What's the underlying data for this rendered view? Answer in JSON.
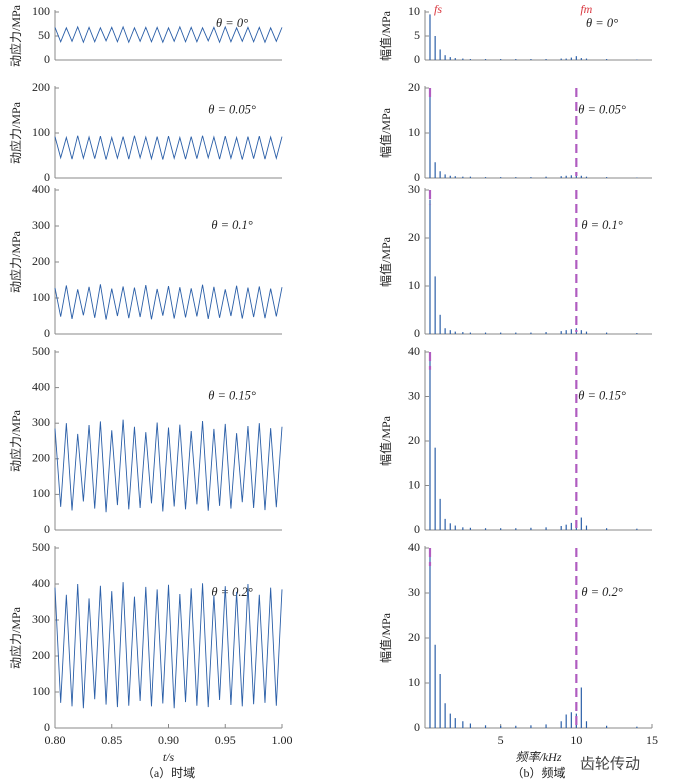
{
  "chart_data": [
    {
      "type": "line",
      "annotation": "θ = 0°",
      "ylabel": "动应力/MPa",
      "color": "#2b5fa8",
      "xlim": [
        0.8,
        1.0
      ],
      "ylim": [
        0,
        100
      ],
      "yticks": [
        0,
        50,
        100
      ],
      "x": [
        0.8,
        0.805,
        0.81,
        0.815,
        0.82,
        0.825,
        0.83,
        0.835,
        0.84,
        0.845,
        0.85,
        0.855,
        0.86,
        0.865,
        0.87,
        0.875,
        0.88,
        0.885,
        0.89,
        0.895,
        0.9,
        0.905,
        0.91,
        0.915,
        0.92,
        0.925,
        0.93,
        0.935,
        0.94,
        0.945,
        0.95,
        0.955,
        0.96,
        0.965,
        0.97,
        0.975,
        0.98,
        0.985,
        0.99,
        0.995,
        1.0
      ],
      "values": [
        68,
        38,
        67,
        39,
        69,
        37,
        68,
        38,
        67,
        40,
        68,
        38,
        69,
        37,
        67,
        39,
        68,
        38,
        68,
        37,
        67,
        39,
        69,
        38,
        68,
        38,
        67,
        40,
        68,
        37,
        69,
        38,
        67,
        39,
        68,
        38,
        68,
        37,
        67,
        39,
        68
      ]
    },
    {
      "type": "line",
      "annotation": "θ = 0.05°",
      "ylabel": "动应力/MPa",
      "color": "#2b5fa8",
      "xlim": [
        0.8,
        1.0
      ],
      "ylim": [
        0,
        200
      ],
      "yticks": [
        0,
        100,
        200
      ],
      "x": [
        0.8,
        0.805,
        0.81,
        0.815,
        0.82,
        0.825,
        0.83,
        0.835,
        0.84,
        0.845,
        0.85,
        0.855,
        0.86,
        0.865,
        0.87,
        0.875,
        0.88,
        0.885,
        0.89,
        0.895,
        0.9,
        0.905,
        0.91,
        0.915,
        0.92,
        0.925,
        0.93,
        0.935,
        0.94,
        0.945,
        0.95,
        0.955,
        0.96,
        0.965,
        0.97,
        0.975,
        0.98,
        0.985,
        0.99,
        0.995,
        1.0
      ],
      "values": [
        92,
        45,
        90,
        42,
        94,
        44,
        91,
        43,
        93,
        41,
        90,
        44,
        92,
        42,
        94,
        45,
        91,
        43,
        92,
        41,
        93,
        44,
        90,
        42,
        92,
        43,
        94,
        45,
        91,
        42,
        93,
        44,
        90,
        41,
        92,
        43,
        93,
        42,
        91,
        44,
        92
      ]
    },
    {
      "type": "line",
      "annotation": "θ = 0.1°",
      "ylabel": "动应力/MPa",
      "color": "#2b5fa8",
      "xlim": [
        0.8,
        1.0
      ],
      "ylim": [
        0,
        400
      ],
      "yticks": [
        0,
        100,
        200,
        300,
        400
      ],
      "x": [
        0.8,
        0.805,
        0.81,
        0.815,
        0.82,
        0.825,
        0.83,
        0.835,
        0.84,
        0.845,
        0.85,
        0.855,
        0.86,
        0.865,
        0.87,
        0.875,
        0.88,
        0.885,
        0.89,
        0.895,
        0.9,
        0.905,
        0.91,
        0.915,
        0.92,
        0.925,
        0.93,
        0.935,
        0.94,
        0.945,
        0.95,
        0.955,
        0.96,
        0.965,
        0.97,
        0.975,
        0.98,
        0.985,
        0.99,
        0.995,
        1.0
      ],
      "values": [
        128,
        48,
        135,
        42,
        124,
        52,
        131,
        45,
        138,
        40,
        126,
        50,
        132,
        44,
        129,
        47,
        136,
        41,
        125,
        51,
        133,
        43,
        130,
        46,
        127,
        49,
        137,
        42,
        131,
        45,
        124,
        50,
        134,
        43,
        129,
        47,
        132,
        44,
        126,
        49,
        130
      ]
    },
    {
      "type": "line",
      "annotation": "θ = 0.15°",
      "ylabel": "动应力/MPa",
      "color": "#2b5fa8",
      "xlim": [
        0.8,
        1.0
      ],
      "ylim": [
        0,
        500
      ],
      "yticks": [
        0,
        100,
        200,
        300,
        400,
        500
      ],
      "x": [
        0.8,
        0.805,
        0.81,
        0.815,
        0.82,
        0.825,
        0.83,
        0.835,
        0.84,
        0.845,
        0.85,
        0.855,
        0.86,
        0.865,
        0.87,
        0.875,
        0.88,
        0.885,
        0.89,
        0.895,
        0.9,
        0.905,
        0.91,
        0.915,
        0.92,
        0.925,
        0.93,
        0.935,
        0.94,
        0.945,
        0.95,
        0.955,
        0.96,
        0.965,
        0.97,
        0.975,
        0.98,
        0.985,
        0.99,
        0.995,
        1.0
      ],
      "values": [
        285,
        65,
        300,
        55,
        270,
        80,
        295,
        60,
        305,
        50,
        280,
        70,
        310,
        58,
        290,
        62,
        275,
        75,
        302,
        52,
        288,
        66,
        296,
        58,
        278,
        72,
        306,
        54,
        284,
        68,
        298,
        60,
        272,
        78,
        292,
        62,
        300,
        56,
        286,
        64,
        290
      ]
    },
    {
      "type": "line",
      "annotation": "θ = 0.2°",
      "ylabel": "动应力/MPa",
      "color": "#2b5fa8",
      "xlim": [
        0.8,
        1.0
      ],
      "ylim": [
        0,
        500
      ],
      "yticks": [
        0,
        100,
        200,
        300,
        400,
        500
      ],
      "xticks": [
        {
          "value": 0.8,
          "label": "0.80"
        },
        0.85,
        {
          "value": 0.9,
          "label": "0.90"
        },
        0.95,
        {
          "value": 1.0,
          "label": "1.00"
        }
      ],
      "xlabel": "t/s",
      "caption": "（a）时域",
      "x": [
        0.8,
        0.805,
        0.81,
        0.815,
        0.82,
        0.825,
        0.83,
        0.835,
        0.84,
        0.845,
        0.85,
        0.855,
        0.86,
        0.865,
        0.87,
        0.875,
        0.88,
        0.885,
        0.89,
        0.895,
        0.9,
        0.905,
        0.91,
        0.915,
        0.92,
        0.925,
        0.93,
        0.935,
        0.94,
        0.945,
        0.95,
        0.955,
        0.96,
        0.965,
        0.97,
        0.975,
        0.98,
        0.985,
        0.99,
        0.995,
        1.0
      ],
      "values": [
        390,
        70,
        370,
        60,
        400,
        55,
        360,
        80,
        395,
        65,
        380,
        58,
        405,
        62,
        365,
        75,
        392,
        60,
        385,
        68,
        398,
        55,
        372,
        72,
        388,
        62,
        402,
        58,
        368,
        78,
        394,
        64,
        378,
        60,
        400,
        66,
        370,
        70,
        390,
        62,
        385
      ]
    },
    {
      "type": "stem",
      "annotation": "θ = 0°",
      "ylabel": "幅值/MPa",
      "color": "#2b5fa8",
      "xlim": [
        0,
        15
      ],
      "ylim": [
        0,
        10
      ],
      "yticks": [
        0,
        5,
        10
      ],
      "marker_labels": [
        {
          "x": 0.33,
          "label": "fs"
        },
        {
          "x": 10,
          "label": "fm"
        }
      ],
      "x": [
        0.33,
        0.67,
        1.0,
        1.33,
        1.67,
        2.0,
        2.5,
        3,
        4,
        5,
        6,
        7,
        8,
        9,
        9.33,
        9.67,
        10,
        10.33,
        10.67,
        12,
        14
      ],
      "values": [
        9.5,
        5,
        2.2,
        1,
        0.6,
        0.4,
        0.3,
        0.2,
        0.2,
        0.2,
        0.2,
        0.2,
        0.2,
        0.3,
        0.3,
        0.5,
        0.8,
        0.4,
        0.3,
        0.2,
        0.1
      ]
    },
    {
      "type": "stem",
      "annotation": "θ = 0.05°",
      "ylabel": "幅值/MPa",
      "color": "#2b5fa8",
      "xlim": [
        0,
        15
      ],
      "ylim": [
        0,
        20
      ],
      "yticks": [
        0,
        10,
        20
      ],
      "marker_lines": [
        0.33,
        10
      ],
      "marker_color": "#b05cc0",
      "x": [
        0.33,
        0.67,
        1.0,
        1.33,
        1.67,
        2.0,
        2.5,
        3,
        4,
        5,
        6,
        7,
        8,
        9,
        9.33,
        9.67,
        10,
        10.33,
        10.67,
        12,
        14
      ],
      "values": [
        18,
        3.5,
        1.5,
        0.8,
        0.5,
        0.4,
        0.3,
        0.3,
        0.2,
        0.2,
        0.2,
        0.2,
        0.3,
        0.4,
        0.5,
        0.6,
        0.8,
        0.5,
        0.3,
        0.2,
        0.1
      ]
    },
    {
      "type": "stem",
      "annotation": "θ = 0.1°",
      "ylabel": "幅值/MPa",
      "color": "#2b5fa8",
      "xlim": [
        0,
        15
      ],
      "ylim": [
        0,
        30
      ],
      "yticks": [
        0,
        10,
        20,
        30
      ],
      "marker_lines": [
        0.33,
        10
      ],
      "marker_color": "#b05cc0",
      "x": [
        0.33,
        0.67,
        1.0,
        1.33,
        1.67,
        2.0,
        2.5,
        3,
        4,
        5,
        6,
        7,
        8,
        9,
        9.33,
        9.67,
        10,
        10.33,
        10.67,
        12,
        14
      ],
      "values": [
        28,
        12,
        4,
        1.2,
        0.8,
        0.5,
        0.4,
        0.3,
        0.3,
        0.3,
        0.3,
        0.3,
        0.4,
        0.6,
        0.8,
        1,
        1.2,
        0.8,
        0.5,
        0.3,
        0.2
      ]
    },
    {
      "type": "stem",
      "annotation": "θ = 0.15°",
      "ylabel": "幅值/MPa",
      "color": "#2b5fa8",
      "xlim": [
        0,
        15
      ],
      "ylim": [
        0,
        40
      ],
      "yticks": [
        0,
        10,
        20,
        30,
        40
      ],
      "marker_lines": [
        0.33,
        10
      ],
      "marker_color": "#b05cc0",
      "x": [
        0.33,
        0.67,
        1.0,
        1.33,
        1.67,
        2.0,
        2.5,
        3,
        4,
        5,
        6,
        7,
        8,
        9,
        9.33,
        9.67,
        10,
        10.33,
        10.67,
        12,
        14
      ],
      "values": [
        40,
        18.5,
        7,
        2.5,
        1.5,
        1,
        0.6,
        0.5,
        0.4,
        0.4,
        0.4,
        0.5,
        0.6,
        0.9,
        1.2,
        1.6,
        2,
        2.8,
        1,
        0.4,
        0.3
      ]
    },
    {
      "type": "stem",
      "annotation": "θ = 0.2°",
      "ylabel": "幅值/MPa",
      "color": "#2b5fa8",
      "xlim": [
        0,
        15
      ],
      "ylim": [
        0,
        40
      ],
      "yticks": [
        0,
        10,
        20,
        30,
        40
      ],
      "xticks": [
        5,
        10,
        15
      ],
      "xlabel": "频率/kHz",
      "caption": "（b）频域",
      "marker_lines": [
        0.33,
        10
      ],
      "marker_color": "#b05cc0",
      "x": [
        0.33,
        0.67,
        1.0,
        1.33,
        1.67,
        2.0,
        2.5,
        3,
        4,
        5,
        6,
        7,
        8,
        9,
        9.33,
        9.67,
        10,
        10.33,
        10.67,
        12,
        14
      ],
      "values": [
        38,
        18.5,
        12,
        5.5,
        3.2,
        2.2,
        1.5,
        1,
        0.6,
        0.5,
        0.5,
        0.6,
        0.8,
        1.5,
        3,
        3.5,
        3.2,
        9,
        1.5,
        0.5,
        0.3
      ]
    }
  ],
  "watermark": "齿轮传动"
}
